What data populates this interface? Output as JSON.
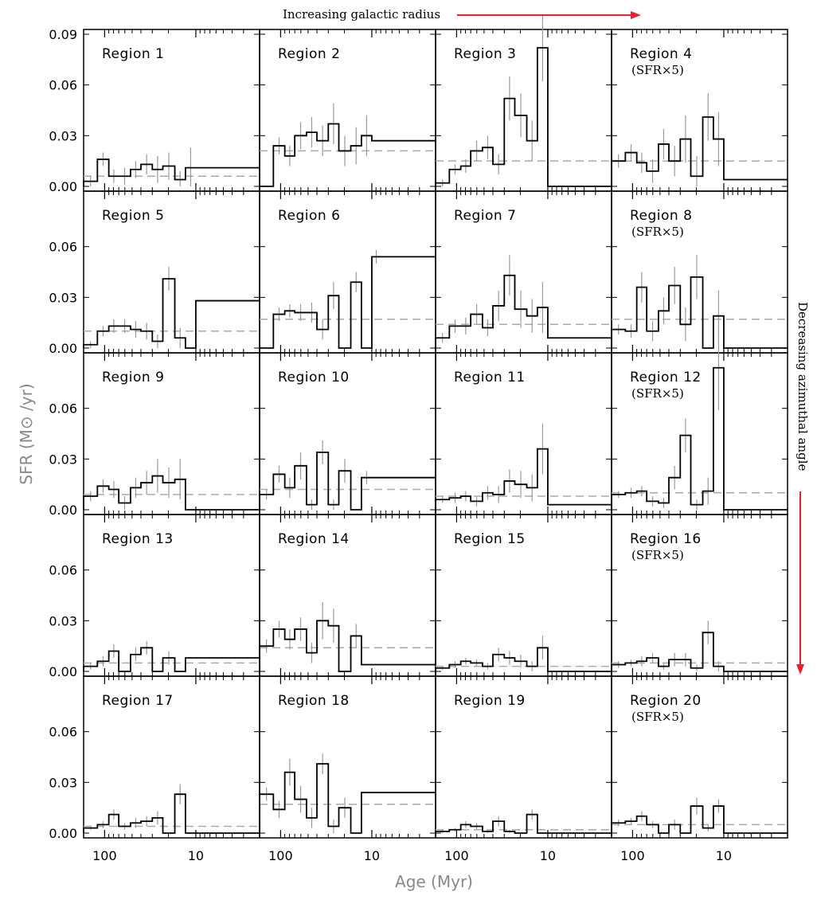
{
  "header": {
    "top_annotation": "Increasing galactic radius",
    "right_annotation": "Decreasing azimuthal angle",
    "arrow_color": "#e8202a"
  },
  "chart_data": {
    "type": "line",
    "grid_layout": "5 rows x 4 columns of step-histogram panels",
    "xlabel": "Age (Myr)",
    "ylabel": "SFR (M⊙ /yr)",
    "x_scale": "log",
    "x_reversed": true,
    "xlim": [
      170,
      2
    ],
    "ylim": [
      0,
      0.09
    ],
    "xticks": [
      100,
      10
    ],
    "xtick_labels": [
      "100",
      "10"
    ],
    "yticks_top_row": [
      "0.00",
      "0.03",
      "0.06",
      "0.09"
    ],
    "yticks_other_rows": [
      "0.00",
      "0.03",
      "0.06"
    ],
    "colors": {
      "histogram": "#000000",
      "errorbar": "#999999",
      "mean_line": "#aaaaaa"
    },
    "bins": [
      [
        170,
        120
      ],
      [
        120,
        90
      ],
      [
        90,
        70
      ],
      [
        70,
        52
      ],
      [
        52,
        40
      ],
      [
        40,
        30
      ],
      [
        30,
        23
      ],
      [
        23,
        17
      ],
      [
        17,
        13
      ],
      [
        13,
        10
      ],
      [
        10,
        8
      ],
      [
        8,
        6
      ],
      [
        6,
        2
      ]
    ],
    "panels": [
      {
        "region": "Region 1",
        "note": "",
        "mean": 0.006,
        "values": [
          0.003,
          0.016,
          0.006,
          0.006,
          0.01,
          0.013,
          0.01,
          0.012,
          0.004,
          0.011,
          0.011,
          0.011,
          0.011
        ],
        "errors": [
          0.003,
          0.004,
          0.004,
          0.005,
          0.005,
          0.006,
          0.008,
          0.008,
          0.005,
          0.012,
          0,
          0,
          0
        ]
      },
      {
        "region": "Region 2",
        "note": "",
        "mean": 0.021,
        "values": [
          0.0,
          0.024,
          0.018,
          0.03,
          0.032,
          0.027,
          0.037,
          0.021,
          0.024,
          0.03,
          0.027,
          0.027,
          0.027
        ],
        "errors": [
          0,
          0.005,
          0.006,
          0.008,
          0.009,
          0.009,
          0.012,
          0.009,
          0.011,
          0.012,
          0,
          0,
          0
        ]
      },
      {
        "region": "Region 3",
        "note": "",
        "mean": 0.015,
        "values": [
          0.002,
          0.01,
          0.012,
          0.021,
          0.023,
          0.013,
          0.052,
          0.042,
          0.027,
          0.082,
          0.0,
          0.0,
          0.0
        ],
        "errors": [
          0.002,
          0.003,
          0.004,
          0.006,
          0.007,
          0.006,
          0.013,
          0.013,
          0.012,
          0.02,
          0,
          0,
          0
        ]
      },
      {
        "region": "Region 4",
        "note": "(SFR×5)",
        "mean": 0.015,
        "values": [
          0.015,
          0.02,
          0.014,
          0.009,
          0.025,
          0.015,
          0.028,
          0.006,
          0.041,
          0.028,
          0.004,
          0.004,
          0.004
        ],
        "errors": [
          0.004,
          0.005,
          0.006,
          0.007,
          0.009,
          0.009,
          0.014,
          0.012,
          0.014,
          0.016,
          0,
          0,
          0
        ]
      },
      {
        "region": "Region 5",
        "note": "",
        "mean": 0.01,
        "values": [
          0.002,
          0.01,
          0.013,
          0.013,
          0.011,
          0.01,
          0.004,
          0.041,
          0.006,
          0.0,
          0.028,
          0.028,
          0.028
        ],
        "errors": [
          0.002,
          0.003,
          0.004,
          0.004,
          0.005,
          0.005,
          0.004,
          0.007,
          0.006,
          0,
          0,
          0,
          0
        ]
      },
      {
        "region": "Region 6",
        "note": "",
        "mean": 0.017,
        "values": [
          0.0,
          0.02,
          0.022,
          0.021,
          0.021,
          0.011,
          0.031,
          0.0,
          0.039,
          0.0,
          0.054,
          0.054,
          0.054
        ],
        "errors": [
          0,
          0.004,
          0.004,
          0.005,
          0.006,
          0.006,
          0.008,
          0,
          0.006,
          0,
          0.004,
          0,
          0
        ]
      },
      {
        "region": "Region 7",
        "note": "",
        "mean": 0.014,
        "values": [
          0.006,
          0.013,
          0.013,
          0.02,
          0.012,
          0.025,
          0.043,
          0.023,
          0.019,
          0.024,
          0.006,
          0.006,
          0.006
        ],
        "errors": [
          0.003,
          0.004,
          0.005,
          0.006,
          0.005,
          0.009,
          0.012,
          0.011,
          0.01,
          0.015,
          0,
          0,
          0
        ]
      },
      {
        "region": "Region 8",
        "note": "(SFR×5)",
        "mean": 0.017,
        "values": [
          0.011,
          0.01,
          0.036,
          0.01,
          0.022,
          0.037,
          0.014,
          0.042,
          0.0,
          0.019,
          0.0,
          0.0,
          0.0
        ],
        "errors": [
          0.003,
          0.004,
          0.009,
          0.006,
          0.008,
          0.011,
          0.01,
          0.013,
          0,
          0.015,
          0,
          0,
          0
        ]
      },
      {
        "region": "Region 9",
        "note": "",
        "mean": 0.009,
        "values": [
          0.008,
          0.014,
          0.012,
          0.004,
          0.013,
          0.016,
          0.02,
          0.016,
          0.018,
          0.0,
          0.0,
          0.0,
          0.0
        ],
        "errors": [
          0.003,
          0.004,
          0.005,
          0.004,
          0.006,
          0.007,
          0.01,
          0.009,
          0.012,
          0,
          0,
          0,
          0
        ]
      },
      {
        "region": "Region 10",
        "note": "",
        "mean": 0.012,
        "values": [
          0.009,
          0.021,
          0.013,
          0.026,
          0.003,
          0.034,
          0.003,
          0.023,
          0.0,
          0.019,
          0.019,
          0.019,
          0.019
        ],
        "errors": [
          0.003,
          0.005,
          0.006,
          0.008,
          0.003,
          0.007,
          0.003,
          0.007,
          0,
          0.004,
          0,
          0,
          0
        ]
      },
      {
        "region": "Region 11",
        "note": "",
        "mean": 0.008,
        "values": [
          0.006,
          0.007,
          0.008,
          0.005,
          0.01,
          0.009,
          0.017,
          0.015,
          0.013,
          0.036,
          0.003,
          0.003,
          0.003
        ],
        "errors": [
          0.002,
          0.003,
          0.003,
          0.003,
          0.004,
          0.005,
          0.007,
          0.008,
          0.008,
          0.015,
          0,
          0,
          0
        ]
      },
      {
        "region": "Region 12",
        "note": "(SFR×5)",
        "mean": 0.01,
        "values": [
          0.009,
          0.01,
          0.011,
          0.005,
          0.004,
          0.019,
          0.044,
          0.003,
          0.011,
          0.084,
          0.0,
          0.0,
          0.0
        ],
        "errors": [
          0.002,
          0.003,
          0.003,
          0.003,
          0.003,
          0.007,
          0.01,
          0.003,
          0.008,
          0.025,
          0,
          0,
          0
        ]
      },
      {
        "region": "Region 13",
        "note": "",
        "mean": 0.005,
        "values": [
          0.003,
          0.006,
          0.012,
          0.0,
          0.01,
          0.014,
          0.0,
          0.008,
          0.0,
          0.008,
          0.008,
          0.008,
          0.008
        ],
        "errors": [
          0.002,
          0.003,
          0.004,
          0,
          0.004,
          0.004,
          0,
          0.004,
          0,
          0,
          0,
          0,
          0
        ]
      },
      {
        "region": "Region 14",
        "note": "",
        "mean": 0.014,
        "values": [
          0.015,
          0.025,
          0.019,
          0.025,
          0.011,
          0.03,
          0.027,
          0.0,
          0.021,
          0.004,
          0.004,
          0.004,
          0.004
        ],
        "errors": [
          0.004,
          0.005,
          0.006,
          0.007,
          0.006,
          0.011,
          0.01,
          0,
          0.007,
          0,
          0,
          0,
          0
        ]
      },
      {
        "region": "Region 15",
        "note": "",
        "mean": 0.003,
        "values": [
          0.002,
          0.004,
          0.006,
          0.005,
          0.003,
          0.01,
          0.008,
          0.006,
          0.003,
          0.014,
          0.0,
          0.0,
          0.0
        ],
        "errors": [
          0.001,
          0.002,
          0.002,
          0.002,
          0.002,
          0.004,
          0.004,
          0.004,
          0.003,
          0.007,
          0,
          0,
          0
        ]
      },
      {
        "region": "Region 16",
        "note": "(SFR×5)",
        "mean": 0.005,
        "values": [
          0.004,
          0.005,
          0.006,
          0.008,
          0.003,
          0.007,
          0.007,
          0.002,
          0.023,
          0.003,
          0.0,
          0.0,
          0.0
        ],
        "errors": [
          0.002,
          0.002,
          0.003,
          0.003,
          0.002,
          0.004,
          0.004,
          0.002,
          0.007,
          0.003,
          0,
          0,
          0
        ]
      },
      {
        "region": "Region 17",
        "note": "",
        "mean": 0.004,
        "values": [
          0.003,
          0.005,
          0.011,
          0.004,
          0.006,
          0.007,
          0.009,
          0.0,
          0.023,
          0.0,
          0.0,
          0.0,
          0.0
        ],
        "errors": [
          0.001,
          0.002,
          0.003,
          0.002,
          0.003,
          0.003,
          0.004,
          0,
          0.006,
          0,
          0,
          0,
          0
        ]
      },
      {
        "region": "Region 18",
        "note": "",
        "mean": 0.017,
        "values": [
          0.023,
          0.014,
          0.036,
          0.02,
          0.009,
          0.041,
          0.004,
          0.015,
          0.0,
          0.024,
          0.024,
          0.024,
          0.024
        ],
        "errors": [
          0.004,
          0.005,
          0.008,
          0.008,
          0.006,
          0.006,
          0.004,
          0.006,
          0,
          0,
          0,
          0,
          0
        ]
      },
      {
        "region": "Region 19",
        "note": "",
        "mean": 0.002,
        "values": [
          0.001,
          0.002,
          0.005,
          0.004,
          0.001,
          0.007,
          0.001,
          0.0,
          0.011,
          0.0,
          0.0,
          0.0,
          0.0
        ],
        "errors": [
          0.001,
          0.001,
          0.002,
          0.002,
          0.001,
          0.003,
          0.001,
          0,
          0.003,
          0,
          0,
          0,
          0
        ]
      },
      {
        "region": "Region 20",
        "note": "(SFR×5)",
        "mean": 0.005,
        "values": [
          0.006,
          0.007,
          0.01,
          0.005,
          0.0,
          0.005,
          0.0,
          0.016,
          0.003,
          0.016,
          0.0,
          0.0,
          0.0
        ],
        "errors": [
          0.002,
          0.002,
          0.003,
          0.002,
          0,
          0.003,
          0,
          0.005,
          0.002,
          0.004,
          0,
          0,
          0
        ]
      }
    ]
  }
}
